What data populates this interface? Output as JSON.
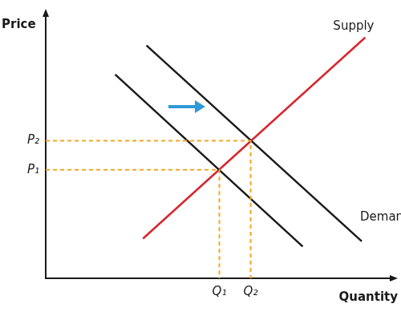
{
  "chart_data": {
    "type": "line",
    "x_label": "Quantity",
    "y_label": "Price",
    "xlim": [
      0,
      10
    ],
    "ylim": [
      0,
      10
    ],
    "xticks": [
      {
        "value": 5,
        "label": "Q₁"
      },
      {
        "value": 5.9,
        "label": "Q₂"
      }
    ],
    "yticks": [
      {
        "value": 4.1,
        "label": "P₁"
      },
      {
        "value": 5.2,
        "label": "P₂"
      }
    ],
    "grid": false,
    "series": [
      {
        "color": "#f5a623",
        "line_style": "dashed",
        "x": [
          0,
          5.9,
          5.9
        ],
        "values": [
          5.2,
          5.2,
          0
        ]
      },
      {
        "color": "#f5a623",
        "line_style": "dashed",
        "x": [
          0,
          5,
          5
        ],
        "values": [
          4.1,
          4.1,
          0
        ]
      },
      {
        "color": "#1a1a1a",
        "line_style": "solid",
        "x": [
          2.0,
          7.4
        ],
        "values": [
          7.7,
          1.2
        ]
      },
      {
        "name": "Demand",
        "color": "#1a1a1a",
        "line_style": "solid",
        "x": [
          2.9,
          9.1
        ],
        "values": [
          8.8,
          1.4
        ]
      },
      {
        "name": "Supply",
        "color": "#d7262e",
        "line_style": "solid",
        "x": [
          2.8,
          9.2
        ],
        "values": [
          1.5,
          9.1
        ]
      }
    ]
  }
}
